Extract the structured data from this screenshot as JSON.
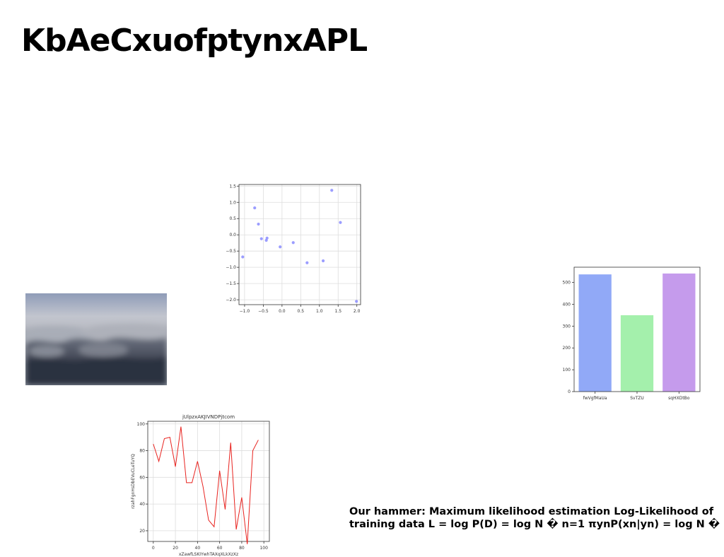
{
  "slide": {
    "title": "KbAeCxuofptynxAPL",
    "caption_line1": "Our hammer: Maximum likelihood estimation Log-Likelihood of",
    "caption_line2": "training data L = log P(D) = log N � n=1 πynP(xn|yn) = log N � n=1"
  },
  "chart_data": [
    {
      "type": "scatter",
      "title": "",
      "xlabel": "",
      "ylabel": "",
      "xlim": [
        -1.15,
        2.1
      ],
      "ylim": [
        -2.15,
        1.55
      ],
      "xticks": [
        -1.0,
        -0.5,
        0.0,
        0.5,
        1.0,
        1.5,
        2.0
      ],
      "xtick_labels": [
        "−1.0",
        "−0.5",
        "0.0",
        "0.5",
        "1.0",
        "1.5",
        "2.0"
      ],
      "yticks": [
        1.5,
        1.0,
        0.5,
        0.0,
        -0.5,
        -1.0,
        -1.5,
        -2.0
      ],
      "ytick_labels": [
        "1.5",
        "1.0",
        "0.5",
        "0.0",
        "−0.5",
        "−1.0",
        "−1.5",
        "−2.0"
      ],
      "grid": true,
      "color": "#8a8cff",
      "points": [
        {
          "x": -1.05,
          "y": -0.68
        },
        {
          "x": -0.73,
          "y": 0.83
        },
        {
          "x": -0.63,
          "y": 0.33
        },
        {
          "x": -0.55,
          "y": -0.12
        },
        {
          "x": -0.4,
          "y": -0.1
        },
        {
          "x": -0.42,
          "y": -0.17
        },
        {
          "x": -0.05,
          "y": -0.37
        },
        {
          "x": 0.3,
          "y": -0.24
        },
        {
          "x": 0.67,
          "y": -0.86
        },
        {
          "x": 1.1,
          "y": -0.8
        },
        {
          "x": 1.33,
          "y": 1.37
        },
        {
          "x": 1.56,
          "y": 0.38
        },
        {
          "x": 1.99,
          "y": -2.05
        }
      ]
    },
    {
      "type": "bar",
      "title": "",
      "xlabel": "",
      "ylabel": "",
      "categories": [
        "fwVgfMaUa",
        "SvTZU",
        "sqHXDtBo"
      ],
      "values": [
        537,
        350,
        541
      ],
      "colors": [
        "#91a9f7",
        "#a4f0ac",
        "#c59bec"
      ],
      "ylim": [
        0,
        570
      ],
      "yticks": [
        0,
        100,
        200,
        300,
        400,
        500
      ],
      "grid": false
    },
    {
      "type": "line",
      "title": "jUlpzxAKJIVNDPjtcom",
      "xlabel": "xZawfLSKIYwhTAXqXLkXzXz",
      "ylabel": "rzahFgnHsDbEVuCLeTuYQ",
      "xlim": [
        -5,
        105
      ],
      "ylim": [
        12,
        102
      ],
      "xticks": [
        0,
        20,
        40,
        60,
        80,
        100
      ],
      "yticks": [
        20,
        40,
        60,
        80,
        100
      ],
      "grid": true,
      "color": "#e8231f",
      "x": [
        0,
        5,
        10,
        15,
        20,
        25,
        30,
        35,
        40,
        45,
        50,
        55,
        60,
        65,
        70,
        75,
        80,
        85,
        90,
        95,
        100
      ],
      "y": [
        85,
        72,
        89,
        90,
        68,
        98,
        56,
        56,
        72,
        53,
        28,
        23,
        65,
        36,
        86,
        21,
        45,
        10,
        80,
        88,
        null
      ]
    }
  ],
  "photo": {
    "subject": "cloudy-sky-photo"
  }
}
